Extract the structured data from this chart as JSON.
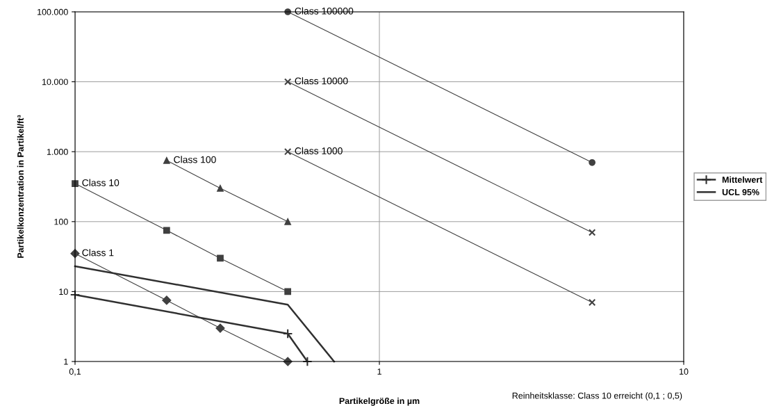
{
  "chart_data": {
    "type": "line",
    "xlabel": "Partikelgröße in µm",
    "ylabel": "Partikelkonzentration in Partikel/ft³",
    "log": "xy",
    "grid": true,
    "legend": "right",
    "xlim": [
      0.1,
      10
    ],
    "xticks": [
      {
        "value": 0.1,
        "label": "0,1"
      },
      1,
      10
    ],
    "ylim": [
      1,
      100000
    ],
    "yticks": [
      1,
      10,
      100,
      {
        "value": 1000,
        "label": "1.000"
      },
      {
        "value": 10000,
        "label": "10.000"
      },
      {
        "value": 100000,
        "label": "100.000"
      }
    ],
    "series": [
      {
        "color": "#404040",
        "marker": "diamond",
        "x": [
          0.1,
          0.2,
          0.3,
          0.5
        ],
        "values": [
          35,
          7.5,
          3,
          1
        ]
      },
      {
        "color": "#404040",
        "marker": "square",
        "x": [
          0.1,
          0.2,
          0.3,
          0.5
        ],
        "values": [
          350,
          75,
          30,
          10
        ]
      },
      {
        "color": "#404040",
        "marker": "triangle",
        "x": [
          0.2,
          0.3,
          0.5
        ],
        "values": [
          750,
          300,
          100
        ]
      },
      {
        "color": "#404040",
        "marker": "cross",
        "x": [
          0.5,
          5
        ],
        "values": [
          1000,
          7
        ]
      },
      {
        "color": "#404040",
        "marker": "cross",
        "x": [
          0.5,
          5
        ],
        "values": [
          10000,
          70
        ]
      },
      {
        "color": "#404040",
        "marker": "circle",
        "x": [
          0.5,
          5
        ],
        "values": [
          100000,
          700
        ]
      },
      {
        "name": "Mittelwert",
        "color": "#303030",
        "marker": "plus",
        "x": [
          0.1,
          0.5,
          0.58
        ],
        "values": [
          9,
          2.5,
          1
        ]
      },
      {
        "name": "UCL 95%",
        "color": "#303030",
        "marker": "none",
        "x": [
          0.1,
          0.5,
          0.71
        ],
        "values": [
          23,
          6.5,
          1
        ]
      }
    ],
    "annotations": [
      {
        "text": "Class 1",
        "x": 0.1,
        "y": 35
      },
      {
        "text": "Class 10",
        "x": 0.1,
        "y": 350
      },
      {
        "text": "Class 100",
        "x": 0.2,
        "y": 750
      },
      {
        "text": "Class 1000",
        "x": 0.5,
        "y": 1000
      },
      {
        "text": "Class 10000",
        "x": 0.5,
        "y": 10000
      },
      {
        "text": "Class 100000",
        "x": 0.5,
        "y": 100000
      },
      "Reinheitsklasse: Class 10 erreicht (0,1 ; 0,5)"
    ]
  }
}
